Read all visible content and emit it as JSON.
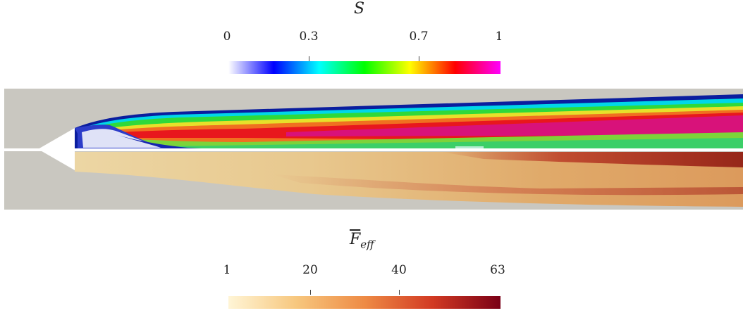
{
  "top_legend": {
    "title": "S",
    "ticks": [
      "0",
      "0.3",
      "0.7",
      "1"
    ],
    "tick_values": [
      0,
      0.3,
      0.7,
      1
    ],
    "range": [
      0,
      1
    ],
    "colormap": [
      "#ffffff",
      "#0000ff",
      "#00ffff",
      "#00ff00",
      "#ffff00",
      "#ff0000",
      "#ff00ff"
    ]
  },
  "bottom_legend": {
    "title": "F",
    "title_sub": "eff",
    "ticks": [
      "1",
      "20",
      "40",
      "63"
    ],
    "tick_values": [
      1,
      20,
      40,
      63
    ],
    "range": [
      1,
      63
    ],
    "colormap": [
      "#fff5d6",
      "#f7c77e",
      "#ee8b45",
      "#d23a23",
      "#7a0016"
    ]
  },
  "colors": {
    "background_field": "#c9c7c0",
    "nozzle": "#ffffff",
    "flame_base": "#e9cf96"
  }
}
